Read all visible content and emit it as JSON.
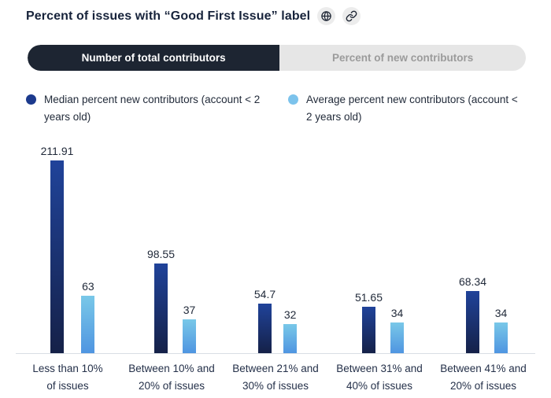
{
  "header": {
    "title": "Percent of issues with “Good First Issue” label",
    "icons": [
      {
        "name": "globe-icon"
      },
      {
        "name": "link-icon"
      }
    ]
  },
  "tabs": [
    {
      "label": "Number of total contributors",
      "active": true
    },
    {
      "label": "Percent of new contributors",
      "active": false
    }
  ],
  "legend": [
    {
      "label": "Median percent new contributors (account < 2 years old)",
      "color": "#1c3a8d"
    },
    {
      "label": "Average percent new contributors (account < 2 years old)",
      "color": "#7cc3ec"
    }
  ],
  "colors": {
    "active_tab_bg": "#1d2532",
    "active_tab_text": "#ffffff",
    "inactive_tab_bg": "#e6e6e6",
    "inactive_tab_text": "#9b9b9b",
    "icon_button_bg": "#ececec",
    "baseline": "#d9dee4"
  },
  "chart_data": {
    "type": "bar",
    "title": "Percent of issues with “Good First Issue” label",
    "grid": false,
    "legend_position": "top",
    "ylim": [
      0,
      220
    ],
    "categories": [
      "Less than 10%\nof issues",
      "Between 10% and\n20% of issues",
      "Between 21% and\n30% of issues",
      "Between 31% and\n40% of issues",
      "Between 41% and\n20% of issues"
    ],
    "series": [
      {
        "name": "Median percent new contributors (account < 2 years old)",
        "color": "#1c3a8d",
        "gradient": [
          "#20439a",
          "#152148"
        ],
        "values": [
          211.91,
          98.55,
          54.7,
          51.65,
          68.34
        ]
      },
      {
        "name": "Average percent new contributors (account < 2 years old)",
        "color": "#7cc3ec",
        "gradient": [
          "#79c8e8",
          "#4f95e1"
        ],
        "values": [
          63,
          37,
          32,
          34,
          34
        ]
      }
    ]
  }
}
